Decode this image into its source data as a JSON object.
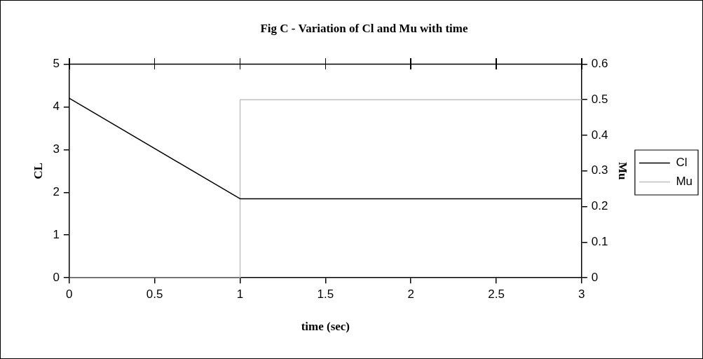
{
  "chart_data": {
    "type": "line",
    "title": "Fig C - Variation of Cl and Mu with time",
    "xlabel": "time (sec)",
    "ylabel": "CL",
    "y2label": "Mu",
    "xlim": [
      0,
      3
    ],
    "xticks": [
      0,
      0.5,
      1,
      1.5,
      2,
      2.5,
      3
    ],
    "ylim": [
      0,
      5
    ],
    "yticks": [
      0,
      1,
      2,
      3,
      4,
      5
    ],
    "y2lim": [
      0,
      0.6
    ],
    "y2ticks": [
      0,
      0.1,
      0.2,
      0.3,
      0.4,
      0.5,
      0.6
    ],
    "grid": false,
    "legend": "right",
    "marker": "none",
    "line_style": "solid",
    "series": [
      {
        "name": "Cl",
        "color": "#000000",
        "x": [
          0,
          1,
          3
        ],
        "values": [
          4.2,
          1.85,
          1.85
        ]
      },
      {
        "name": "Mu",
        "color": "#c0c0c0",
        "axis": "y2",
        "x": [
          0,
          1,
          1,
          3
        ],
        "values": [
          0,
          0,
          0.5,
          0.5
        ]
      }
    ]
  }
}
